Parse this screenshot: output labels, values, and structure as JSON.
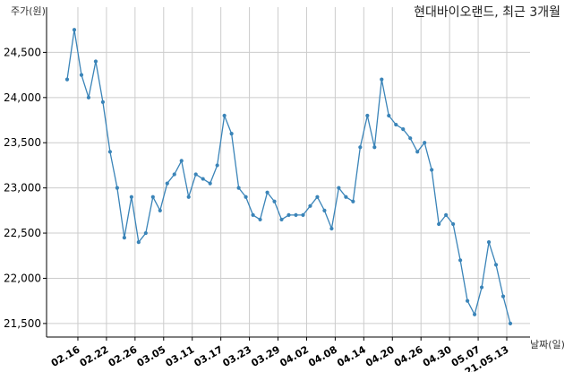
{
  "chart_data": {
    "type": "line",
    "title": "현대바이오랜드, 최근 3개월",
    "ylabel": "주가(원)",
    "xlabel": "날짜(일)",
    "ylim": [
      21350,
      25000
    ],
    "grid": true,
    "line_color": "#3a84b8",
    "y_ticks": [
      21500,
      22000,
      22500,
      23000,
      23500,
      24000,
      24500
    ],
    "y_tick_labels": [
      "21,500",
      "22,000",
      "22,500",
      "23,000",
      "23,500",
      "24,000",
      "24,500"
    ],
    "x_tick_labels": [
      {
        "label": "02.16",
        "index": 1.5
      },
      {
        "label": "02.22",
        "index": 5.5
      },
      {
        "label": "02.26",
        "index": 9.5
      },
      {
        "label": "03.05",
        "index": 13.5
      },
      {
        "label": "03.11",
        "index": 17.5
      },
      {
        "label": "03.17",
        "index": 21.5
      },
      {
        "label": "03.23",
        "index": 25.5
      },
      {
        "label": "03.29",
        "index": 29.5
      },
      {
        "label": "04.02",
        "index": 33.5
      },
      {
        "label": "04.08",
        "index": 37.5
      },
      {
        "label": "04.14",
        "index": 41.5
      },
      {
        "label": "04.20",
        "index": 45.5
      },
      {
        "label": "04.26",
        "index": 49.5
      },
      {
        "label": "04.30",
        "index": 53.5
      },
      {
        "label": "05.07",
        "index": 57.5
      },
      {
        "label": "21.05.13",
        "index": 61.5
      }
    ],
    "values": [
      24200,
      24750,
      24250,
      24000,
      24400,
      23950,
      23400,
      23000,
      22450,
      22900,
      22400,
      22500,
      22900,
      22750,
      23050,
      23150,
      23300,
      22900,
      23150,
      23100,
      23050,
      23250,
      23800,
      23600,
      23000,
      22900,
      22700,
      22650,
      22950,
      22850,
      22650,
      22700,
      22700,
      22700,
      22800,
      22900,
      22750,
      22550,
      23000,
      22900,
      22850,
      23450,
      23800,
      23450,
      24200,
      23800,
      23700,
      23650,
      23550,
      23400,
      23500,
      23200,
      22600,
      22700,
      22600,
      22200,
      21750,
      21600,
      21900,
      22400,
      22150,
      21800,
      21500
    ]
  }
}
